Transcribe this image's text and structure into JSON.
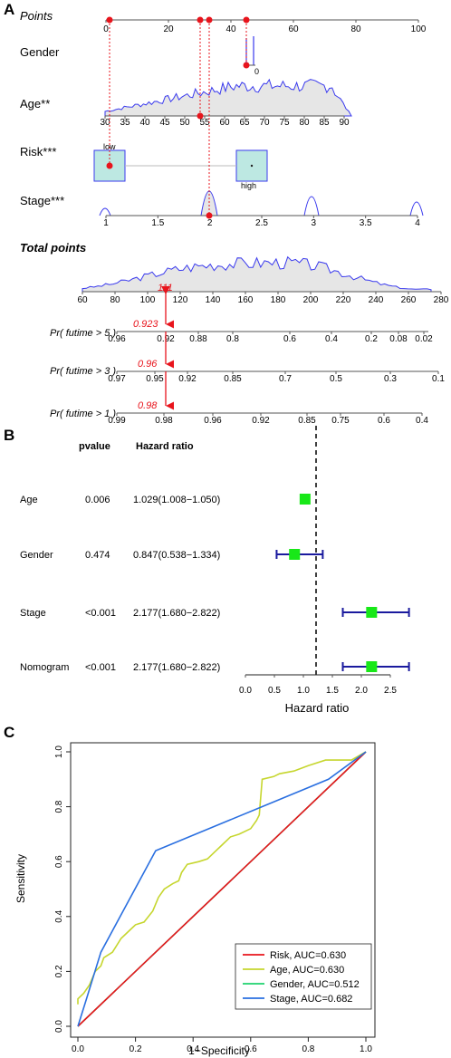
{
  "panels": {
    "a": "A",
    "b": "B",
    "c": "C"
  },
  "nomogram": {
    "rows": {
      "points": "Points",
      "gender": "Gender",
      "age": "Age**",
      "risk": "Risk***",
      "stage": "Stage***",
      "total": "Total points",
      "p5": "Pr( futime > 5 )",
      "p3": "Pr( futime > 3 )",
      "p1": "Pr( futime > 1 )"
    },
    "points_ticks": [
      "0",
      "20",
      "40",
      "60",
      "80",
      "100"
    ],
    "gender_label": "0",
    "age_ticks": [
      "30",
      "35",
      "40",
      "45",
      "50",
      "55",
      "60",
      "65",
      "70",
      "75",
      "80",
      "85",
      "90"
    ],
    "risk_labels": {
      "low": "low",
      "high": "high"
    },
    "stage_ticks": [
      "1",
      "1.5",
      "2",
      "2.5",
      "3",
      "3.5",
      "4"
    ],
    "total_ticks": [
      "60",
      "80",
      "100",
      "120",
      "140",
      "160",
      "180",
      "200",
      "220",
      "240",
      "260",
      "280"
    ],
    "p5_ticks": [
      "0.96",
      "0.92",
      "0.88",
      "0.8",
      "0.6",
      "0.4",
      "0.2",
      "0.08",
      "0.02"
    ],
    "p3_ticks": [
      "0.97",
      "0.95",
      "0.92",
      "0.85",
      "0.7",
      "0.5",
      "0.3",
      "0.1"
    ],
    "p1_ticks": [
      "0.99",
      "0.98",
      "0.96",
      "0.92",
      "0.85",
      "0.75",
      "0.6",
      "0.4"
    ],
    "selected": {
      "total": "111",
      "p5": "0.923",
      "p3": "0.96",
      "p1": "0.98"
    },
    "colors": {
      "axis": "#3a3aee",
      "density_fill": "#e6e6e6",
      "marker": "#e8141c",
      "box_fill": "#bde8e2"
    }
  },
  "forest": {
    "headers": {
      "pvalue": "pvalue",
      "hr": "Hazard ratio"
    },
    "xlabel": "Hazard ratio",
    "ticks": [
      "0.0",
      "0.5",
      "1.0",
      "1.5",
      "2.0",
      "2.5"
    ],
    "rows": [
      {
        "name": "Age",
        "pvalue": "0.006",
        "hr_text": "1.029(1.008−1.050)"
      },
      {
        "name": "Gender",
        "pvalue": "0.474",
        "hr_text": "0.847(0.538−1.334)"
      },
      {
        "name": "Stage",
        "pvalue": "<0.001",
        "hr_text": "2.177(1.680−2.822)"
      },
      {
        "name": "Nomogram",
        "pvalue": "<0.001",
        "hr_text": "2.177(1.680−2.822)"
      }
    ],
    "colors": {
      "box": "#18e818",
      "ci": "#1a1a9e"
    }
  },
  "roc": {
    "xlabel": "1−Specificity",
    "ylabel": "Sensitivity",
    "xticks": [
      "0.0",
      "0.2",
      "0.4",
      "0.6",
      "0.8",
      "1.0"
    ],
    "yticks": [
      "0.0",
      "0.2",
      "0.4",
      "0.6",
      "0.8",
      "1.0"
    ],
    "legend": [
      "Risk, AUC=0.630",
      "Age, AUC=0.630",
      "Gender, AUC=0.512",
      "Stage, AUC=0.682"
    ],
    "colors": [
      "#e8141c",
      "#c6d62e",
      "#1ed26e",
      "#2a6fe0"
    ]
  },
  "chart_data": [
    {
      "type": "line",
      "ylabel": "",
      "xlabel": "Total points",
      "ranges": {
        "points": [
          0,
          100
        ],
        "age": [
          30,
          90
        ],
        "stage": [
          1,
          4
        ],
        "total": [
          60,
          280
        ]
      },
      "selected_patient": {
        "points_marked": [
          0,
          30.5,
          33.5,
          45.5
        ],
        "age": 55,
        "risk": "low",
        "stage": 2,
        "total_points": 111,
        "pr_5y": 0.923,
        "pr_3y": 0.96,
        "pr_1y": 0.98
      },
      "gender": {
        "levels": [
          "0"
        ]
      },
      "risk": {
        "levels": [
          "low",
          "high"
        ]
      },
      "stage": {
        "levels": [
          1,
          2,
          3,
          4
        ]
      },
      "pr_5y_ticks": [
        0.96,
        0.92,
        0.88,
        0.8,
        0.6,
        0.4,
        0.2,
        0.08,
        0.02
      ],
      "pr_3y_ticks": [
        0.97,
        0.95,
        0.92,
        0.85,
        0.7,
        0.5,
        0.3,
        0.1
      ],
      "pr_1y_ticks": [
        0.99,
        0.98,
        0.96,
        0.92,
        0.85,
        0.75,
        0.6,
        0.4
      ]
    },
    {
      "type": "scatter",
      "xlabel": "Hazard ratio",
      "xlim": [
        0,
        2.5
      ],
      "reference_line": 1.0,
      "categories": [
        "Age",
        "Gender",
        "Stage",
        "Nomogram"
      ],
      "series": [
        {
          "values": [
            1.029,
            0.847,
            2.177,
            2.177
          ]
        },
        {
          "values": [
            1.008,
            0.538,
            1.68,
            1.68
          ]
        },
        {
          "values": [
            1.05,
            1.334,
            2.822,
            2.822
          ]
        }
      ],
      "pvalues": [
        "0.006",
        "0.474",
        "<0.001",
        "<0.001"
      ]
    },
    {
      "type": "line",
      "xlabel": "1−Specificity",
      "ylabel": "Sensitivity",
      "xlim": [
        0,
        1
      ],
      "ylim": [
        0,
        1
      ],
      "legend_position": "bottom-right",
      "series": [
        {
          "name": "Risk, AUC=0.630",
          "x": [
            0,
            1
          ],
          "y": [
            0,
            1
          ]
        },
        {
          "name": "Age, AUC=0.630",
          "x": [
            0,
            0,
            0.02,
            0.04,
            0.06,
            0.08,
            0.09,
            0.12,
            0.15,
            0.18,
            0.2,
            0.23,
            0.26,
            0.28,
            0.3,
            0.33,
            0.35,
            0.36,
            0.38,
            0.42,
            0.45,
            0.48,
            0.5,
            0.53,
            0.56,
            0.6,
            0.62,
            0.63,
            0.64,
            0.68,
            0.7,
            0.75,
            0.8,
            0.86,
            0.9,
            0.95,
            1
          ],
          "y": [
            0.08,
            0.1,
            0.12,
            0.15,
            0.2,
            0.22,
            0.25,
            0.27,
            0.32,
            0.35,
            0.37,
            0.38,
            0.42,
            0.47,
            0.5,
            0.52,
            0.53,
            0.56,
            0.59,
            0.6,
            0.61,
            0.64,
            0.66,
            0.69,
            0.7,
            0.72,
            0.75,
            0.77,
            0.9,
            0.91,
            0.92,
            0.93,
            0.95,
            0.97,
            0.97,
            0.97,
            1
          ]
        },
        {
          "name": "Gender, AUC=0.512",
          "x": [
            0,
            1
          ],
          "y": [
            0,
            1
          ]
        },
        {
          "name": "Stage, AUC=0.682",
          "x": [
            0,
            0.03,
            0.08,
            0.27,
            0.87,
            1
          ],
          "y": [
            0,
            0.1,
            0.27,
            0.64,
            0.9,
            1
          ]
        }
      ]
    }
  ]
}
